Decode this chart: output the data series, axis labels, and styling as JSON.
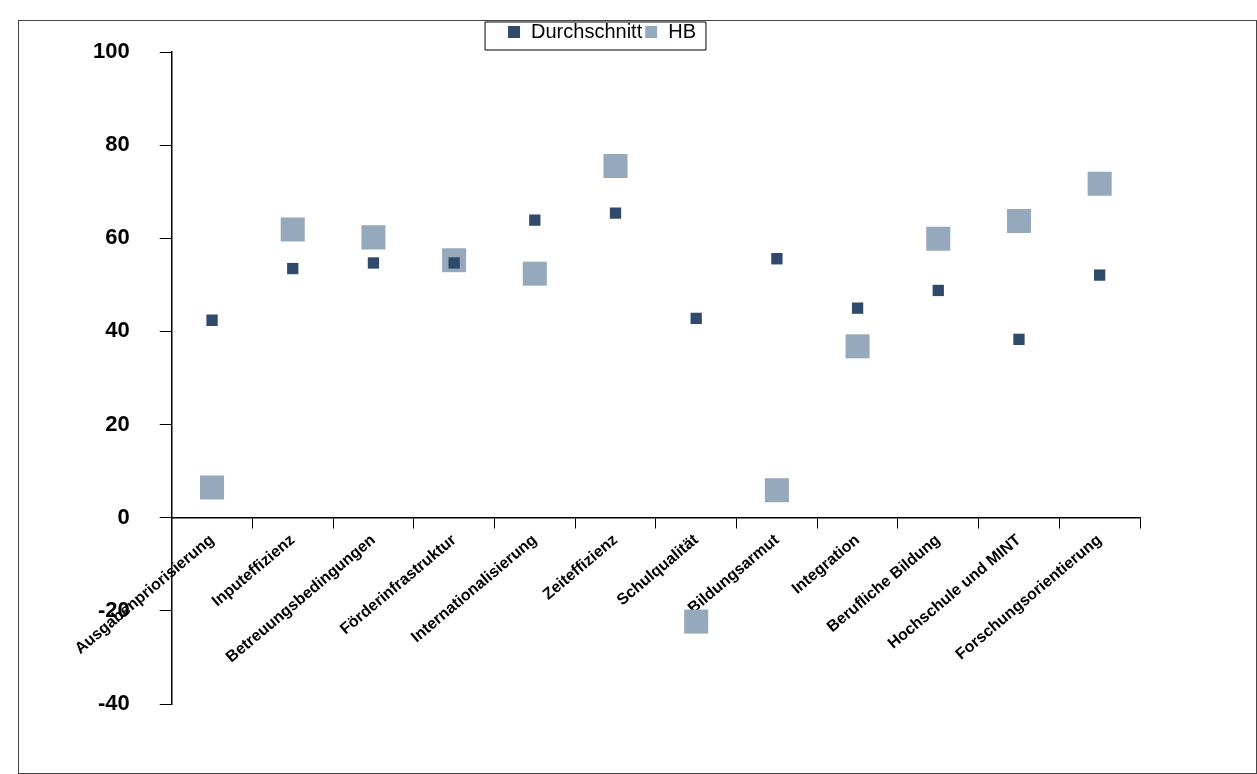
{
  "chart_data": {
    "type": "scatter",
    "categories": [
      "Ausgabenpriorisierung",
      "Inputeffizienz",
      "Betreuungsbedingungen",
      "Förderinfrastruktur",
      "Internationalisierung",
      "Zeiteffizienz",
      "Schulqualität",
      "Bildungsarmut",
      "Integration",
      "Berufliche Bildung",
      "Hochschule und MINT",
      "Forschungsorientierung"
    ],
    "series": [
      {
        "name": "Durchschnitt",
        "color": "#2f4a6b",
        "marker": "square",
        "values": [
          42.4,
          53.5,
          54.7,
          54.7,
          63.9,
          65.4,
          42.8,
          55.6,
          45.0,
          48.8,
          38.3,
          52.1
        ]
      },
      {
        "name": "HB",
        "color": "#95a8bc",
        "marker": "square",
        "values": [
          6.5,
          61.9,
          60.2,
          55.3,
          52.4,
          75.5,
          -22.3,
          5.9,
          36.8,
          59.9,
          63.7,
          71.7
        ]
      }
    ],
    "ylim": [
      -40,
      100
    ],
    "yticks": [
      -40,
      -20,
      0,
      20,
      40,
      60,
      80,
      100
    ],
    "grid": false,
    "legend": "top"
  }
}
